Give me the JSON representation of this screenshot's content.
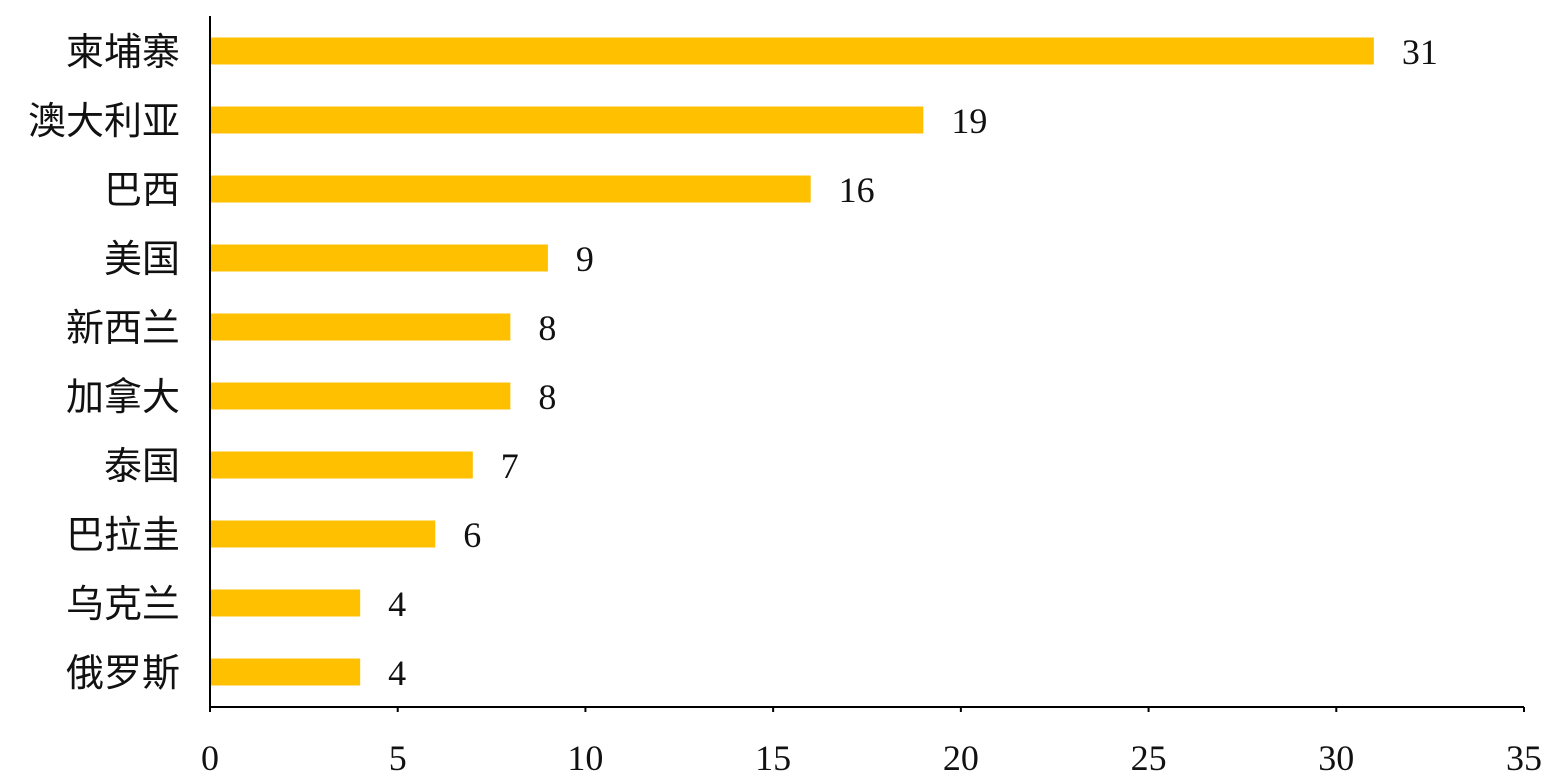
{
  "chart_data": {
    "type": "bar",
    "orientation": "horizontal",
    "categories": [
      "柬埔寨",
      "澳大利亚",
      "巴西",
      "美国",
      "新西兰",
      "加拿大",
      "泰国",
      "巴拉圭",
      "乌克兰",
      "俄罗斯"
    ],
    "values": [
      31,
      19,
      16,
      9,
      8,
      8,
      7,
      6,
      4,
      4
    ],
    "data_labels": [
      "31",
      "19",
      "16",
      "9",
      "8",
      "8",
      "7",
      "6",
      "4",
      "4"
    ],
    "title": "",
    "xlabel": "",
    "ylabel": "",
    "xlim": [
      0,
      35
    ],
    "x_ticks": [
      0,
      5,
      10,
      15,
      20,
      25,
      30,
      35
    ],
    "x_tick_labels": [
      "0",
      "5",
      "10",
      "15",
      "20",
      "25",
      "30",
      "35"
    ],
    "grid": false,
    "legend": "none",
    "colors": {
      "bar": "#FFC000",
      "axis": "#000000",
      "text": "#111111"
    }
  }
}
